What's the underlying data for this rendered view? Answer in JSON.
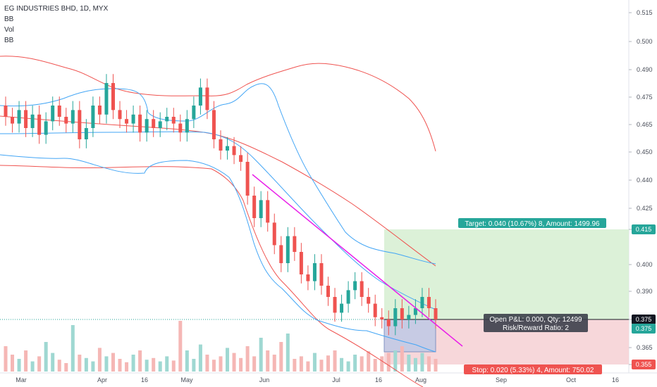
{
  "legend": {
    "symbol_line": "EG INDUSTRIES BHD, 1D, MYX",
    "indicators": [
      "BB",
      "Vol",
      "BB"
    ]
  },
  "chart_data": {
    "type": "candlestick",
    "y_ticks": [
      "0.515",
      "0.500",
      "0.490",
      "0.475",
      "0.465",
      "0.450",
      "0.440",
      "0.425",
      "0.415",
      "0.400",
      "0.390",
      "0.375",
      "0.365",
      "0.355"
    ],
    "x_ticks": [
      "Mar",
      "Apr",
      "16",
      "May",
      "Jun",
      "Jul",
      "16",
      "Aug",
      "Sep",
      "Oct",
      "16"
    ],
    "price_tags": [
      {
        "label": "0.415",
        "color": "#26a69a"
      },
      {
        "label": "0.375",
        "color": "#131722"
      },
      {
        "label": "0.375",
        "color": "#26a69a"
      },
      {
        "label": "0.355",
        "color": "#ef5350"
      }
    ],
    "position": {
      "entry": 0.375,
      "target": 0.415,
      "stop": 0.355,
      "target_label": "Target: 0.040 (10.67%) 8, Amount: 1499.96",
      "pnl_label": "Open P&L: 0.000, Qty: 12499",
      "rr_label": "Risk/Reward Ratio: 2",
      "stop_label": "Stop: 0.020 (5.33%) 4, Amount: 750.02"
    },
    "series": [
      {
        "name": "candles",
        "open": [
          0.47,
          0.465,
          0.462,
          0.468,
          0.46,
          0.466,
          0.457,
          0.463,
          0.47,
          0.465,
          0.462,
          0.468,
          0.455,
          0.46,
          0.47,
          0.466,
          0.48,
          0.468,
          0.464,
          0.462,
          0.466,
          0.458,
          0.464,
          0.46,
          0.463,
          0.465,
          0.462,
          0.458,
          0.464,
          0.47,
          0.478,
          0.468,
          0.455,
          0.45,
          0.452,
          0.448,
          0.445,
          0.43,
          0.42,
          0.428,
          0.418,
          0.408,
          0.4,
          0.412,
          0.405,
          0.395,
          0.392,
          0.4,
          0.39,
          0.385,
          0.378,
          0.382,
          0.388,
          0.392,
          0.385,
          0.382,
          0.376,
          0.375,
          0.372,
          0.38,
          0.375,
          0.377,
          0.38,
          0.385,
          0.38
        ],
        "close": [
          0.465,
          0.462,
          0.468,
          0.46,
          0.466,
          0.457,
          0.463,
          0.47,
          0.465,
          0.462,
          0.468,
          0.455,
          0.46,
          0.47,
          0.466,
          0.48,
          0.468,
          0.464,
          0.462,
          0.466,
          0.458,
          0.464,
          0.46,
          0.463,
          0.465,
          0.462,
          0.458,
          0.464,
          0.47,
          0.478,
          0.468,
          0.455,
          0.45,
          0.452,
          0.448,
          0.445,
          0.43,
          0.42,
          0.428,
          0.418,
          0.408,
          0.4,
          0.412,
          0.405,
          0.395,
          0.392,
          0.4,
          0.39,
          0.385,
          0.378,
          0.382,
          0.388,
          0.392,
          0.385,
          0.382,
          0.376,
          0.375,
          0.372,
          0.38,
          0.375,
          0.377,
          0.38,
          0.385,
          0.38,
          0.375
        ],
        "volume": [
          0.3,
          0.2,
          0.15,
          0.25,
          0.12,
          0.18,
          0.35,
          0.22,
          0.14,
          0.1,
          0.55,
          0.2,
          0.16,
          0.12,
          0.28,
          0.18,
          0.22,
          0.15,
          0.11,
          0.2,
          0.25,
          0.14,
          0.16,
          0.12,
          0.18,
          0.13,
          0.6,
          0.25,
          0.15,
          0.32,
          0.2,
          0.14,
          0.18,
          0.28,
          0.22,
          0.16,
          0.3,
          0.18,
          0.4,
          0.25,
          0.2,
          0.35,
          0.45,
          0.15,
          0.18,
          0.12,
          0.22,
          0.14,
          0.19,
          0.25,
          0.16,
          0.12,
          0.2,
          0.18,
          0.24,
          0.15,
          0.18,
          0.22,
          0.25,
          0.3,
          0.2,
          0.16,
          0.22,
          0.18,
          0.15
        ]
      }
    ]
  }
}
